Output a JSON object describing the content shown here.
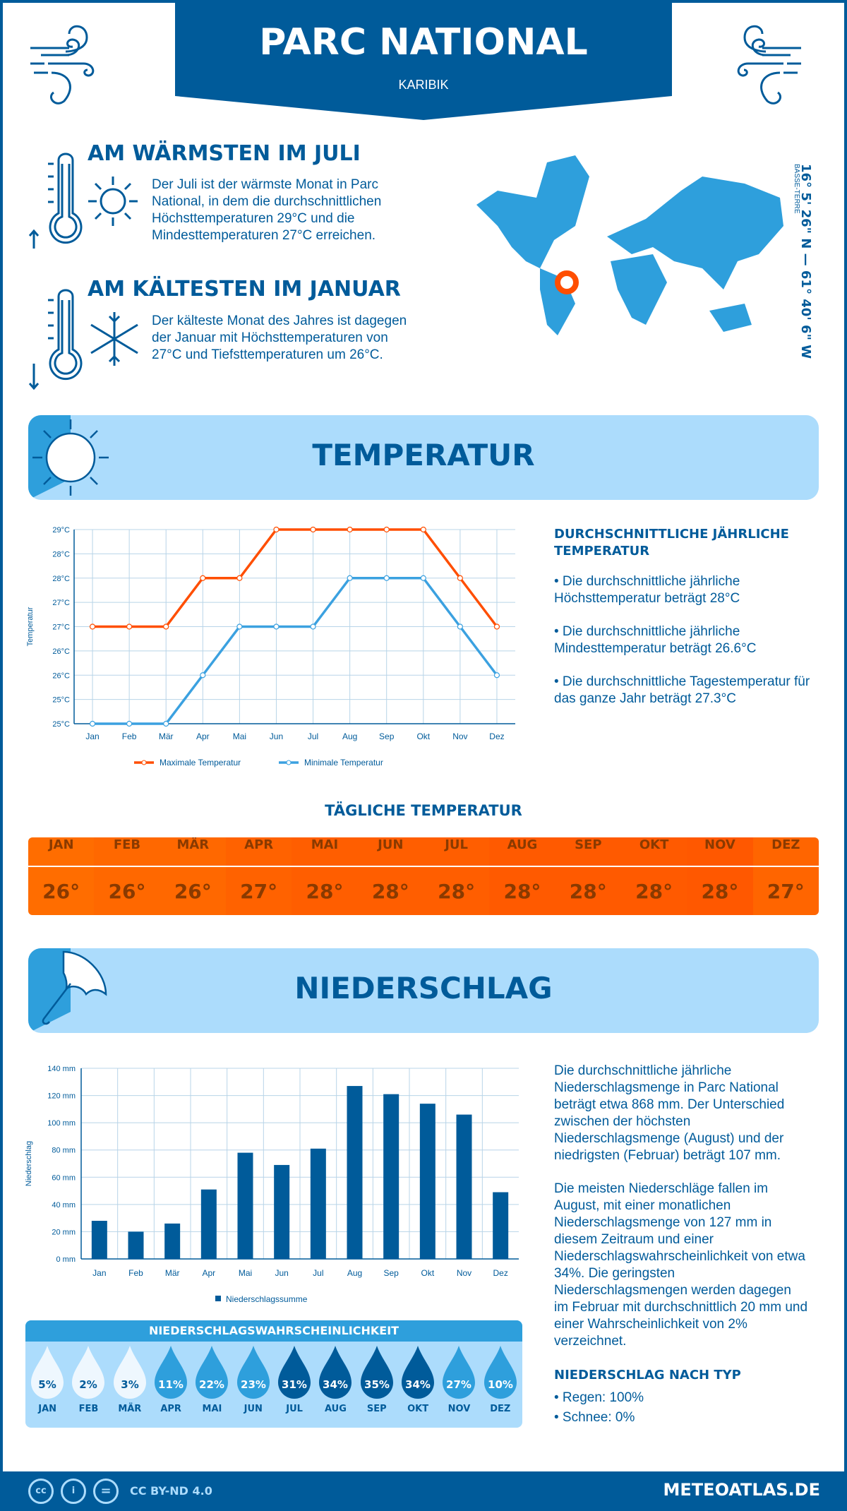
{
  "header": {
    "title": "PARC NATIONAL",
    "subtitle": "KARIBIK"
  },
  "warmest": {
    "heading": "AM WÄRMSTEN IM JULI",
    "text": "Der Juli ist der wärmste Monat in Parc National, in dem die durchschnittlichen Höchsttemperaturen 29°C und die Mindesttemperaturen 27°C erreichen."
  },
  "coldest": {
    "heading": "AM KÄLTESTEN IM JANUAR",
    "text": "Der kälteste Monat des Jahres ist dagegen der Januar mit Höchsttemperaturen von 27°C und Tiefsttemperaturen um 26°C."
  },
  "location": {
    "coordinates": "16° 5' 26\" N — 61° 40' 6\" W",
    "region": "BASSE-TERRE",
    "marker_color": "#ff4e00"
  },
  "temperature_section": {
    "title": "TEMPERATUR",
    "annual_heading": "DURCHSCHNITTLICHE JÄHRLICHE TEMPERATUR",
    "bullets": [
      "• Die durchschnittliche jährliche Höchsttemperatur beträgt 28°C",
      "• Die durchschnittliche jährliche Mindesttemperatur beträgt 26.6°C",
      "• Die durchschnittliche Tagestemperatur für das ganze Jahr beträgt 27.3°C"
    ],
    "daily_heading": "TÄGLICHE TEMPERATUR",
    "daily": [
      {
        "m": "JAN",
        "v": "26°"
      },
      {
        "m": "FEB",
        "v": "26°"
      },
      {
        "m": "MÄR",
        "v": "26°"
      },
      {
        "m": "APR",
        "v": "27°"
      },
      {
        "m": "MAI",
        "v": "28°"
      },
      {
        "m": "JUN",
        "v": "28°"
      },
      {
        "m": "JUL",
        "v": "28°"
      },
      {
        "m": "AUG",
        "v": "28°"
      },
      {
        "m": "SEP",
        "v": "28°"
      },
      {
        "m": "OKT",
        "v": "28°"
      },
      {
        "m": "NOV",
        "v": "28°"
      },
      {
        "m": "DEZ",
        "v": "27°"
      }
    ]
  },
  "precip_section": {
    "title": "NIEDERSCHLAG",
    "text1": "Die durchschnittliche jährliche Niederschlagsmenge in Parc National beträgt etwa 868 mm. Der Unterschied zwischen der höchsten Niederschlagsmenge (August) und der niedrigsten (Februar) beträgt 107 mm.",
    "text2": "Die meisten Niederschläge fallen im August, mit einer monatlichen Niederschlagsmenge von 127 mm in diesem Zeitraum und einer Niederschlagswahrscheinlichkeit von etwa 34%. Die geringsten Niederschlagsmengen werden dagegen im Februar mit durchschnittlich 20 mm und einer Wahrscheinlichkeit von 2% verzeichnet.",
    "type_heading": "NIEDERSCHLAG NACH TYP",
    "types": [
      "• Regen: 100%",
      "• Schnee: 0%"
    ],
    "prob_heading": "NIEDERSCHLAGSWAHRSCHEINLICHKEIT",
    "prob": [
      {
        "m": "JAN",
        "v": "5%"
      },
      {
        "m": "FEB",
        "v": "2%"
      },
      {
        "m": "MÄR",
        "v": "3%"
      },
      {
        "m": "APR",
        "v": "11%"
      },
      {
        "m": "MAI",
        "v": "22%"
      },
      {
        "m": "JUN",
        "v": "23%"
      },
      {
        "m": "JUL",
        "v": "31%"
      },
      {
        "m": "AUG",
        "v": "34%"
      },
      {
        "m": "SEP",
        "v": "35%"
      },
      {
        "m": "OKT",
        "v": "34%"
      },
      {
        "m": "NOV",
        "v": "27%"
      },
      {
        "m": "DEZ",
        "v": "10%"
      }
    ]
  },
  "colors": {
    "dark_blue": "#005b9a",
    "mid_blue": "#2e9fdc",
    "light_blue": "#acdcfc",
    "max_temp": "#ff4e00",
    "min_temp": "#3ba1e0",
    "daily_orange": "#ff6400"
  },
  "footer": {
    "license": "CC BY-ND 4.0",
    "site": "METEOATLAS.DE"
  },
  "chart_data": [
    {
      "type": "line",
      "categories": [
        "Jan",
        "Feb",
        "Mär",
        "Apr",
        "Mai",
        "Jun",
        "Jul",
        "Aug",
        "Sep",
        "Okt",
        "Nov",
        "Dez"
      ],
      "ylabel": "Temperatur",
      "ylim": [
        25,
        29
      ],
      "yticks": [
        "25°C",
        "25°C",
        "26°C",
        "26°C",
        "27°C",
        "27°C",
        "28°C",
        "28°C",
        "29°C"
      ],
      "grid": true,
      "legend": "bottom",
      "series": [
        {
          "name": "Maximale Temperatur",
          "values": [
            27,
            27,
            27,
            28,
            28,
            29,
            29,
            29,
            29,
            29,
            28,
            27
          ]
        },
        {
          "name": "Minimale Temperatur",
          "values": [
            25,
            25,
            25,
            26,
            27,
            27,
            27,
            28,
            28,
            28,
            27,
            26
          ]
        }
      ]
    },
    {
      "type": "bar",
      "categories": [
        "Jan",
        "Feb",
        "Mär",
        "Apr",
        "Mai",
        "Jun",
        "Jul",
        "Aug",
        "Sep",
        "Okt",
        "Nov",
        "Dez"
      ],
      "ylabel": "Niederschlag",
      "ylim": [
        0,
        140
      ],
      "yticks": [
        "0 mm",
        "20 mm",
        "40 mm",
        "60 mm",
        "80 mm",
        "100 mm",
        "120 mm",
        "140 mm"
      ],
      "grid": true,
      "legend": "bottom",
      "series": [
        {
          "name": "Niederschlagssumme",
          "values": [
            28,
            20,
            26,
            51,
            78,
            69,
            81,
            127,
            121,
            114,
            106,
            49
          ]
        }
      ]
    }
  ]
}
